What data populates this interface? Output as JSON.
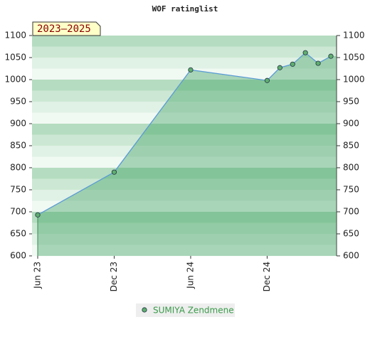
{
  "chart_data": {
    "type": "line",
    "title": "WOF ratinglist",
    "badge": "2023–2025",
    "x": [
      "2023-06",
      "2023-12",
      "2024-06",
      "2024-12",
      "2025-01",
      "2025-02",
      "2025-03",
      "2025-04",
      "2025-05"
    ],
    "series": [
      {
        "name": "SUMIYA Zendmene",
        "color": "#5fae6e",
        "values": [
          693,
          790,
          1022,
          998,
          1027,
          1035,
          1061,
          1037,
          1053
        ]
      }
    ],
    "xlim": [
      "2023-06",
      "2025-05"
    ],
    "xticks": [
      {
        "value": "2023-06",
        "label": "Jun 23"
      },
      {
        "value": "2023-12",
        "label": "Dec 23"
      },
      {
        "value": "2024-06",
        "label": "Jun 24"
      },
      {
        "value": "2024-12",
        "label": "Dec 24"
      }
    ],
    "ylim": [
      600,
      1100
    ],
    "yticks": [
      600,
      650,
      700,
      750,
      800,
      850,
      900,
      950,
      1000,
      1050,
      1100
    ],
    "y2lim": [
      600,
      1100
    ],
    "y2ticks": [
      600,
      650,
      700,
      750,
      800,
      850,
      900,
      950,
      1000,
      1050,
      1100
    ]
  }
}
